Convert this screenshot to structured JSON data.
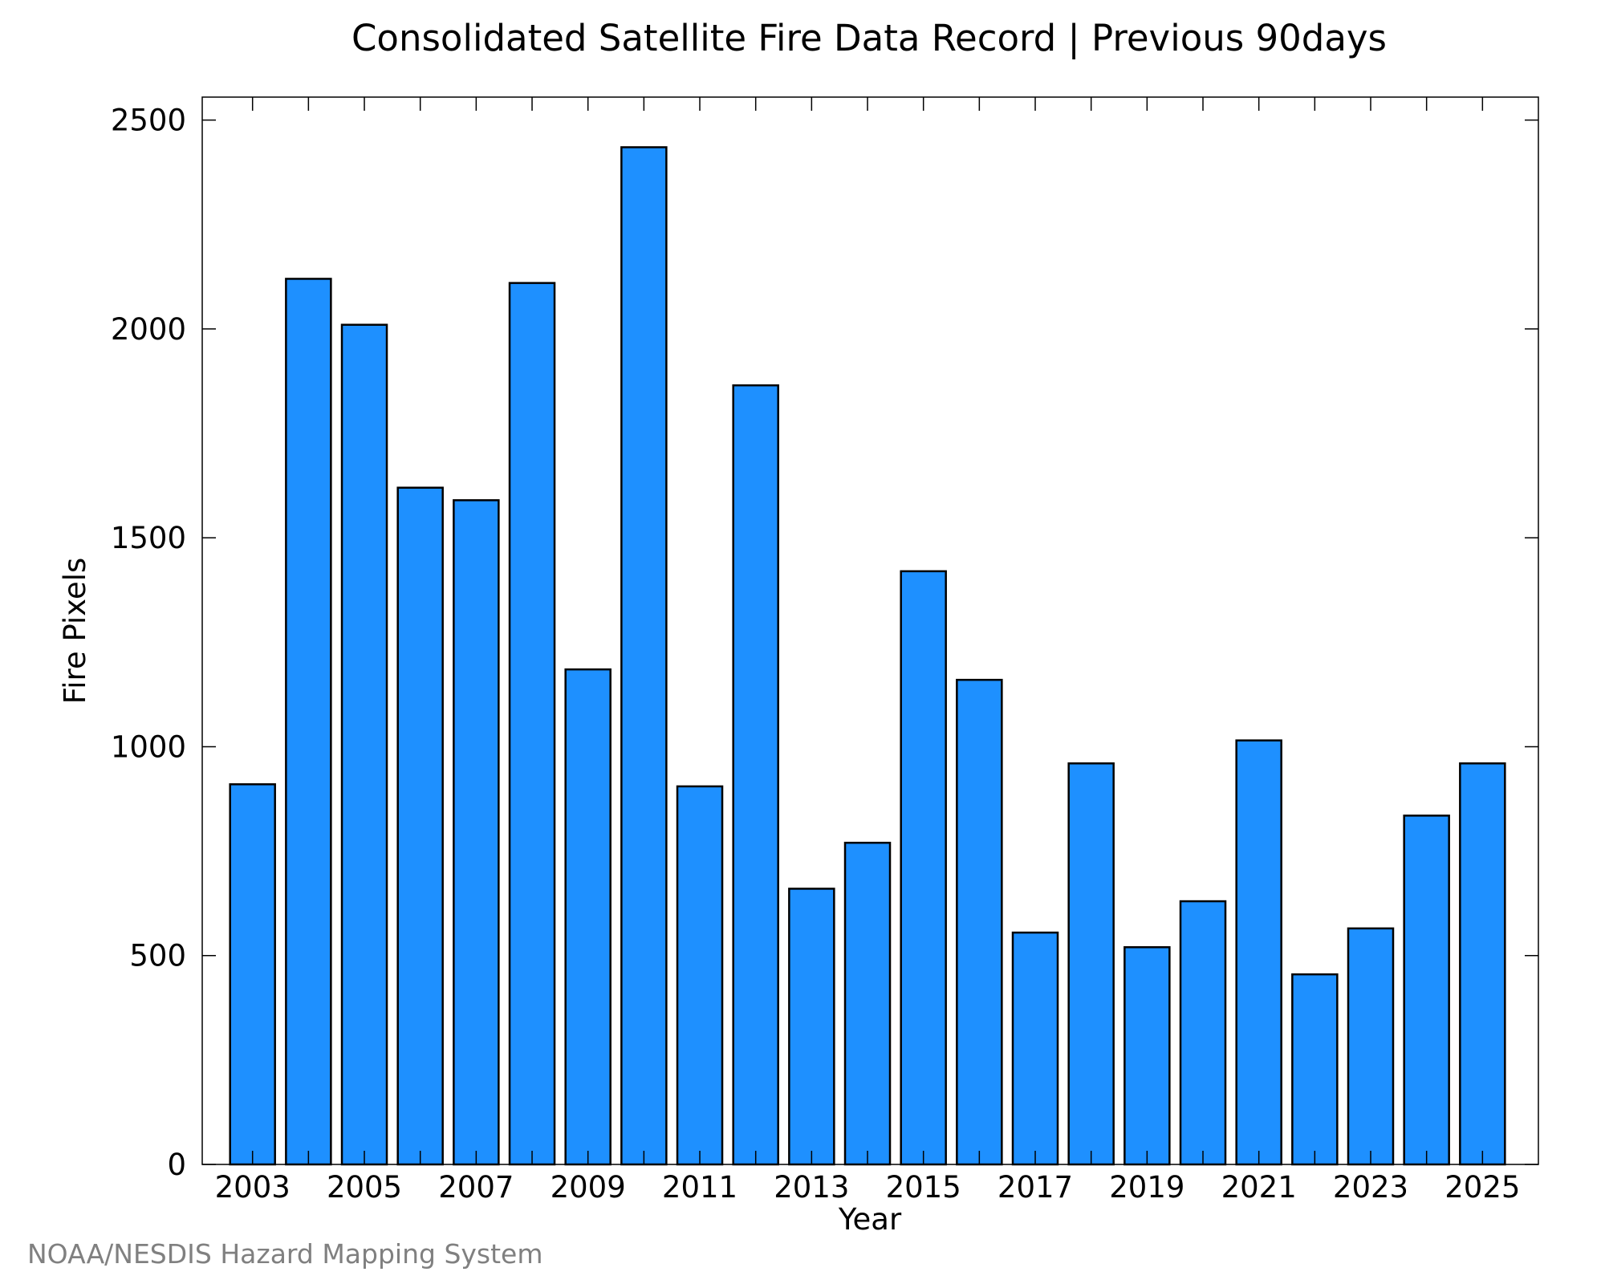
{
  "credit": "NOAA/NESDIS Hazard Mapping System",
  "colors": {
    "bar_fill": "#1E90FF",
    "bar_stroke": "#000000",
    "axis": "#000000",
    "credit": "#808080"
  },
  "chart_data": {
    "type": "bar",
    "title": "Consolidated Satellite Fire Data Record | Previous 90days",
    "xlabel": "Year",
    "ylabel": "Fire Pixels",
    "categories": [
      "2003",
      "2004",
      "2005",
      "2006",
      "2007",
      "2008",
      "2009",
      "2010",
      "2011",
      "2012",
      "2013",
      "2014",
      "2015",
      "2016",
      "2017",
      "2018",
      "2019",
      "2020",
      "2021",
      "2022",
      "2023",
      "2024",
      "2025"
    ],
    "values": [
      910,
      2120,
      2010,
      1620,
      1590,
      2110,
      1185,
      2435,
      905,
      1865,
      660,
      770,
      1420,
      1160,
      555,
      960,
      520,
      630,
      1015,
      455,
      565,
      835,
      960
    ],
    "xticks": [
      "2003",
      "2005",
      "2007",
      "2009",
      "2011",
      "2013",
      "2015",
      "2017",
      "2019",
      "2021",
      "2023",
      "2025"
    ],
    "yticks": [
      0,
      500,
      1000,
      1500,
      2000,
      2500
    ],
    "ylim": [
      0,
      2555
    ],
    "xlim": [
      2002.1,
      2026
    ],
    "grid": false,
    "legend": "none"
  }
}
